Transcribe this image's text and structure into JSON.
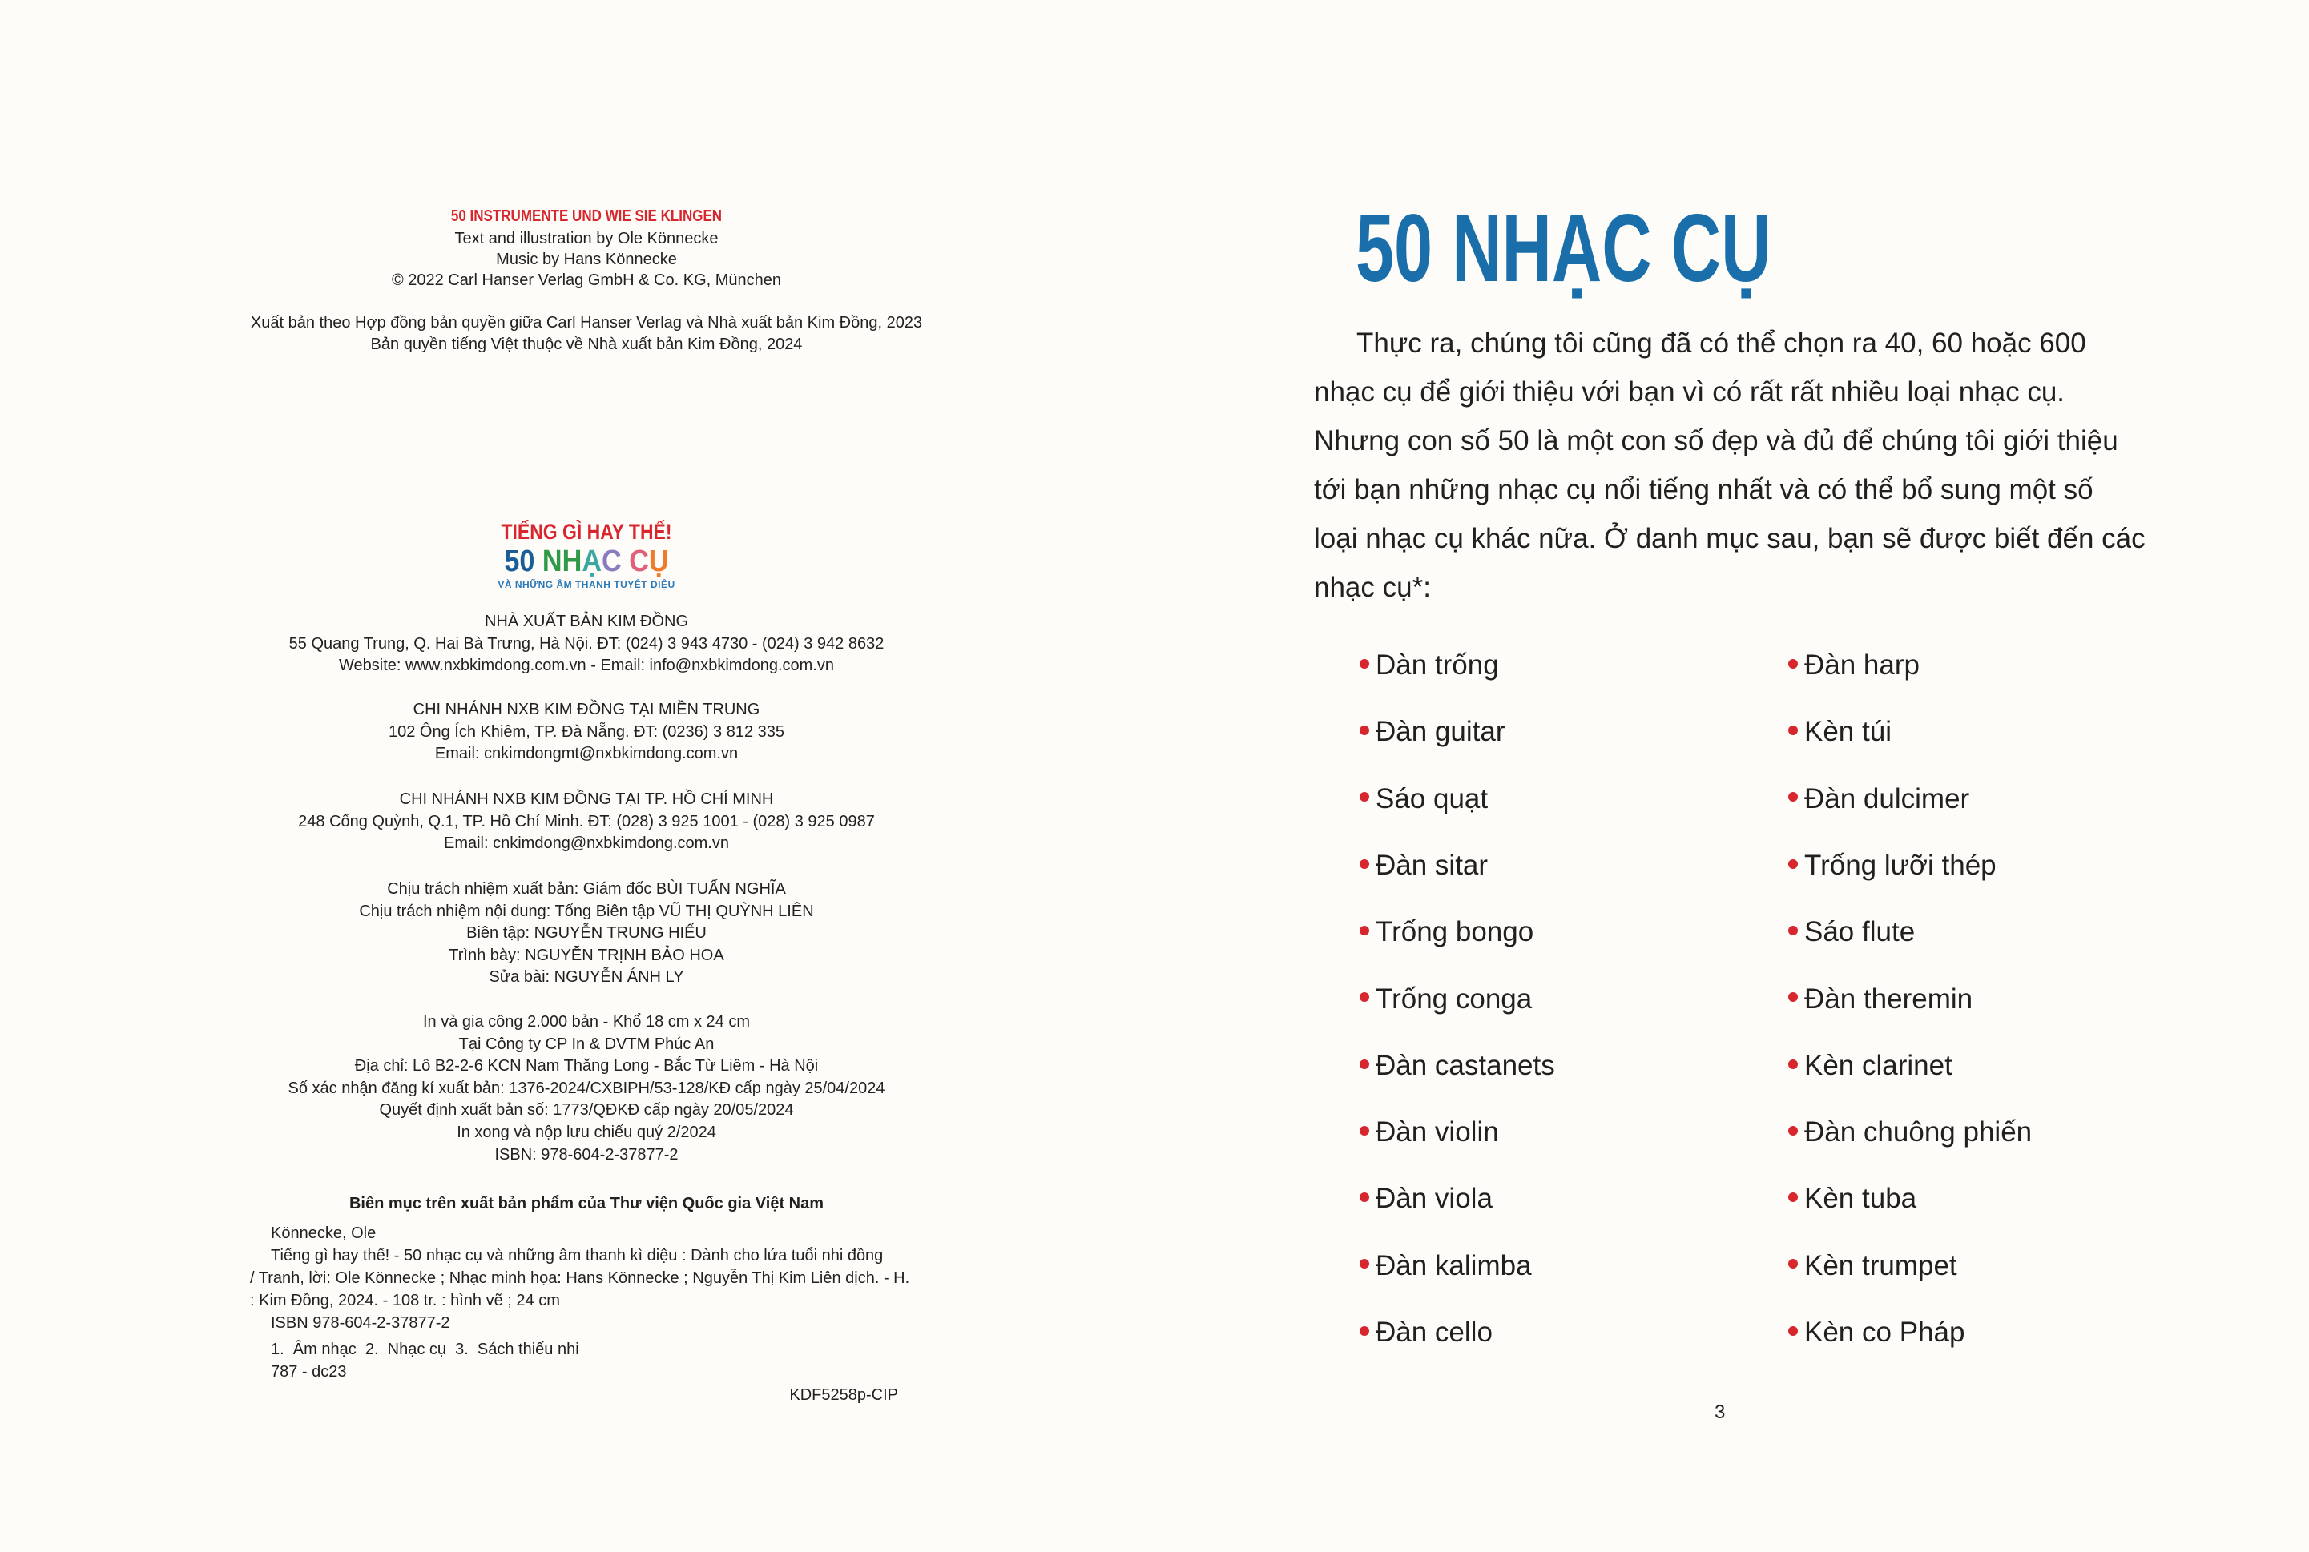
{
  "left_page": {
    "original_title": "50 INSTRUMENTE UND WIE SIE KLINGEN",
    "credits": [
      "Text and illustration by Ole Könnecke",
      "Music by Hans Könnecke",
      "© 2022 Carl Hanser Verlag GmbH & Co. KG, München"
    ],
    "rights": [
      "Xuất bản theo Hợp đồng bản quyền giữa Carl Hanser Verlag và Nhà xuất bản Kim Đồng, 2023",
      "Bản quyền tiếng Việt thuộc về Nhà xuất bản Kim Đồng, 2024"
    ],
    "logo": {
      "line1": "TIẾNG GÌ HAY THẾ!",
      "line2_letters": [
        {
          "t": "50 ",
          "color": "#1b5d96"
        },
        {
          "t": "N",
          "color": "#2e9a48"
        },
        {
          "t": "H",
          "color": "#2e9a48"
        },
        {
          "t": "Ạ",
          "color": "#3aa8a0"
        },
        {
          "t": "C ",
          "color": "#8a7ac0"
        },
        {
          "t": "C",
          "color": "#e0607a"
        },
        {
          "t": "Ụ",
          "color": "#ee7a2a"
        }
      ],
      "line3": "VÀ NHỮNG ÂM THANH TUYỆT DIỆU"
    },
    "publisher": [
      "NHÀ XUẤT BẢN KIM ĐỒNG",
      "55 Quang Trung, Q. Hai Bà Trưng, Hà Nội. ĐT: (024) 3 943 4730 - (024) 3 942 8632",
      "Website: www.nxbkimdong.com.vn - Email: info@nxbkimdong.com.vn"
    ],
    "branch_central": [
      "CHI NHÁNH NXB KIM ĐỒNG TẠI MIỀN TRUNG",
      "102 Ông Ích Khiêm, TP. Đà Nẵng. ĐT: (0236) 3 812 335",
      "Email: cnkimdongmt@nxbkimdong.com.vn"
    ],
    "branch_hcm": [
      "CHI NHÁNH NXB KIM ĐỒNG TẠI TP. HỒ CHÍ MINH",
      "248 Cống Quỳnh, Q.1, TP. Hồ Chí Minh. ĐT: (028) 3 925 1001 - (028) 3 925 0987",
      "Email: cnkimdong@nxbkimdong.com.vn"
    ],
    "staff": [
      "Chịu trách nhiệm xuất bản: Giám đốc BÙI TUẤN NGHĨA",
      "Chịu trách nhiệm nội dung: Tổng Biên tập VŨ THỊ QUỲNH LIÊN",
      "Biên tập: NGUYỄN TRUNG HIẾU",
      "Trình bày: NGUYỄN TRỊNH BẢO HOA",
      "Sửa bài: NGUYỄN ÁNH LY"
    ],
    "printing": [
      "In và gia công 2.000 bản - Khổ 18 cm x 24 cm",
      "Tại Công ty CP In & DVTM Phúc An",
      "Địa chỉ: Lô B2-2-6 KCN Nam Thăng Long - Bắc Từ Liêm - Hà Nội",
      "Số xác nhận đăng kí xuất bản: 1376-2024/CXBIPH/53-128/KĐ cấp ngày 25/04/2024",
      "Quyết định xuất bản số: 1773/QĐKĐ cấp ngày 20/05/2024",
      "In xong và nộp lưu chiểu quý 2/2024",
      "ISBN: 978-604-2-37877-2"
    ],
    "cip": {
      "heading": "Biên mục trên xuất bản phẩm của Thư viện Quốc gia Việt Nam",
      "author": "Könnecke, Ole",
      "description_lines": [
        "Tiếng gì hay thế! - 50 nhạc cụ và những âm thanh kì diệu : Dành cho lứa tuổi nhi đồng",
        "/ Tranh, lời: Ole Könnecke ; Nhạc minh họa: Hans Könnecke ; Nguyễn Thị Kim Liên dịch. - H.",
        ": Kim Đồng, 2024. - 108 tr. : hình vẽ ; 24 cm"
      ],
      "isbn": "ISBN 978-604-2-37877-2",
      "subjects": "1.  Âm nhạc  2.  Nhạc cụ  3.  Sách thiếu nhi",
      "classification": "787 - dc23",
      "code": "KDF5258p-CIP"
    }
  },
  "right_page": {
    "title": "50 NHẠC CỤ",
    "title_color": "#1a6fab",
    "bullet_color": "#d7262e",
    "paragraph_lines": [
      "Thực ra, chúng tôi cũng đã có thể chọn ra 40, 60 hoặc 600",
      "nhạc cụ để giới thiệu với bạn vì có rất rất nhiều loại nhạc cụ.",
      "Nhưng con số 50 là một con số đẹp và đủ để chúng tôi giới thiệu",
      "tới bạn những nhạc cụ nổi tiếng nhất và có thể bổ sung một số",
      "loại nhạc cụ khác nữa. Ở danh mục sau, bạn sẽ được biết đến các",
      "nhạc cụ*:"
    ],
    "list_col1": [
      "Dàn trống",
      "Đàn guitar",
      "Sáo quạt",
      "Đàn sitar",
      "Trống bongo",
      "Trống conga",
      "Đàn castanets",
      "Đàn violin",
      "Đàn viola",
      "Đàn kalimba",
      "Đàn cello"
    ],
    "list_col2": [
      "Đàn harp",
      "Kèn túi",
      "Đàn dulcimer",
      "Trống lưỡi thép",
      "Sáo flute",
      "Đàn theremin",
      "Kèn clarinet",
      "Đàn chuông phiến",
      "Kèn tuba",
      "Kèn trumpet",
      "Kèn co Pháp"
    ],
    "page_number": "3"
  }
}
